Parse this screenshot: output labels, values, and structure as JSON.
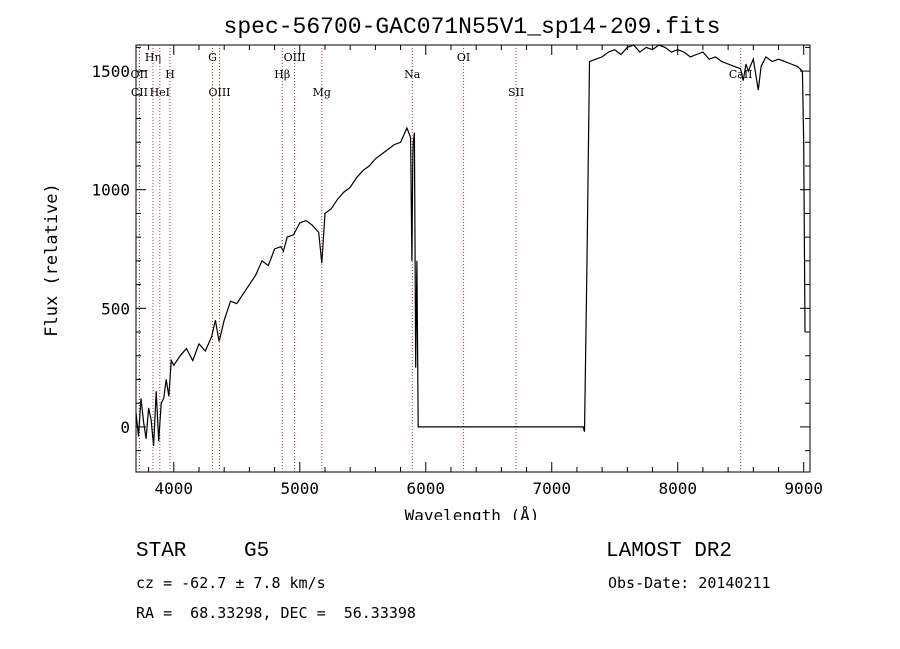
{
  "chart_data": {
    "type": "line",
    "title": "spec-56700-GAC071N55V1_sp14-209.fits",
    "xlabel": "Wavelength (Å)",
    "ylabel": "Flux (relative)",
    "xlim": [
      3700,
      9050
    ],
    "ylim": [
      -190,
      1610
    ],
    "x_ticks": [
      4000,
      5000,
      6000,
      7000,
      8000,
      9000
    ],
    "y_ticks": [
      0,
      500,
      1000,
      1500
    ],
    "x": [
      3700,
      3720,
      3740,
      3760,
      3780,
      3800,
      3820,
      3840,
      3860,
      3880,
      3900,
      3920,
      3940,
      3960,
      3980,
      4000,
      4050,
      4100,
      4150,
      4200,
      4250,
      4300,
      4330,
      4360,
      4400,
      4450,
      4500,
      4550,
      4600,
      4650,
      4700,
      4750,
      4800,
      4850,
      4870,
      4900,
      4950,
      5000,
      5050,
      5100,
      5150,
      5175,
      5200,
      5250,
      5300,
      5350,
      5400,
      5450,
      5500,
      5550,
      5600,
      5650,
      5700,
      5750,
      5800,
      5850,
      5880,
      5890,
      5896,
      5900,
      5910,
      5920,
      5930,
      5940,
      5960,
      6100,
      6400,
      6700,
      7000,
      7200,
      7250,
      7260,
      7280,
      7300,
      7350,
      7400,
      7450,
      7500,
      7550,
      7600,
      7650,
      7700,
      7750,
      7800,
      7850,
      7900,
      7950,
      8000,
      8050,
      8100,
      8150,
      8200,
      8250,
      8300,
      8350,
      8400,
      8450,
      8498,
      8520,
      8542,
      8560,
      8600,
      8640,
      8662,
      8700,
      8750,
      8800,
      8850,
      8900,
      8950,
      8990,
      9000,
      9010
    ],
    "y": [
      60,
      -40,
      120,
      20,
      -50,
      80,
      30,
      -80,
      150,
      -60,
      100,
      120,
      200,
      130,
      280,
      260,
      300,
      330,
      280,
      350,
      320,
      380,
      450,
      360,
      450,
      530,
      520,
      560,
      600,
      640,
      700,
      680,
      750,
      760,
      740,
      800,
      810,
      860,
      870,
      850,
      820,
      690,
      900,
      920,
      960,
      990,
      1010,
      1050,
      1080,
      1100,
      1130,
      1150,
      1170,
      1190,
      1200,
      1260,
      1220,
      700,
      1100,
      1200,
      1240,
      250,
      700,
      0,
      0,
      0,
      0,
      0,
      0,
      0,
      0,
      -20,
      700,
      1540,
      1550,
      1560,
      1580,
      1590,
      1570,
      1600,
      1620,
      1580,
      1600,
      1590,
      1620,
      1600,
      1580,
      1590,
      1580,
      1560,
      1570,
      1580,
      1550,
      1560,
      1540,
      1530,
      1520,
      1510,
      1460,
      1530,
      1500,
      1550,
      1420,
      1520,
      1560,
      1540,
      1550,
      1540,
      1530,
      1520,
      1500,
      1200,
      400
    ],
    "lines": [
      {
        "label": "OII",
        "w": 3727,
        "row": 2
      },
      {
        "label": "Hη",
        "w": 3835,
        "row": 1
      },
      {
        "label": "CII",
        "w": 3727,
        "row": 3
      },
      {
        "label": "HeI",
        "w": 3889,
        "row": 3
      },
      {
        "label": "H",
        "w": 3970,
        "row": 2
      },
      {
        "label": "G",
        "w": 4307,
        "row": 1
      },
      {
        "label": "OIII",
        "w": 4363,
        "row": 3
      },
      {
        "label": "Hβ",
        "w": 4861,
        "row": 2
      },
      {
        "label": "OIII",
        "w": 4959,
        "row": 1
      },
      {
        "label": "Mg",
        "w": 5175,
        "row": 3
      },
      {
        "label": "Na",
        "w": 5893,
        "row": 2
      },
      {
        "label": "OI",
        "w": 6300,
        "row": 1
      },
      {
        "label": "SII",
        "w": 6717,
        "row": 3
      },
      {
        "label": "CaII",
        "w": 8500,
        "row": 2
      }
    ]
  },
  "info": {
    "object_type": "STAR",
    "subclass": "G5",
    "survey": "LAMOST DR2",
    "cz": "cz = -62.7 ± 7.8 km/s",
    "obs_date": "Obs-Date: 20140211",
    "coords": "RA =  68.33298, DEC =  56.33398"
  },
  "colors": {
    "line_markers": "#b03a2e",
    "spectrum": "#000000"
  }
}
